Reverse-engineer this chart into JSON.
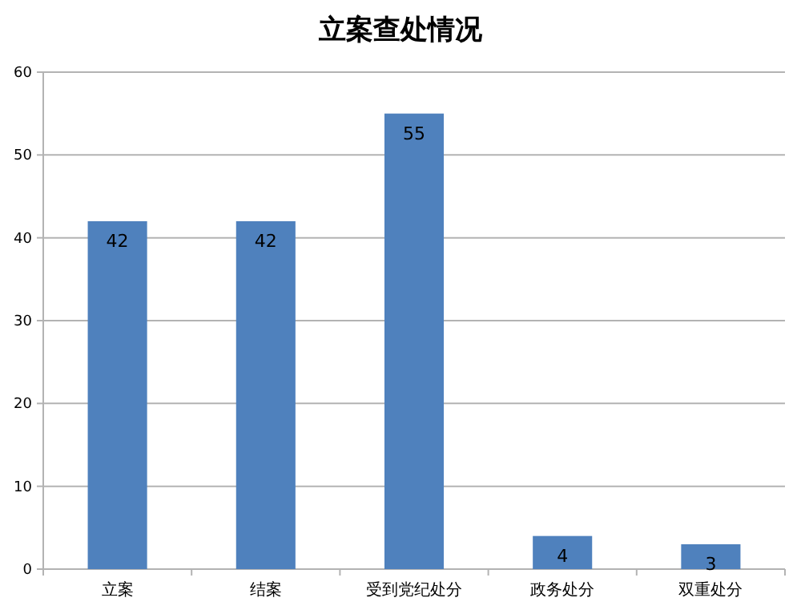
{
  "chart_data": {
    "type": "bar",
    "title": "立案查处情况",
    "categories": [
      "立案",
      "结案",
      "受到党纪处分",
      "政务处分",
      "双重处分"
    ],
    "values": [
      42,
      42,
      55,
      4,
      3
    ],
    "color": "#4f81bd",
    "ylim": [
      0,
      60
    ],
    "yticks": [
      0,
      10,
      20,
      30,
      40,
      50,
      60
    ],
    "grid": "y",
    "data_labels": true
  }
}
